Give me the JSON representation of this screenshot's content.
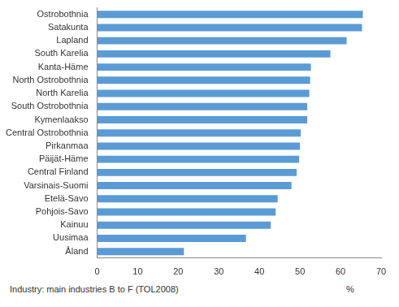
{
  "chart_data": {
    "type": "bar",
    "orientation": "horizontal",
    "categories": [
      "Ostrobothnia",
      "Satakunta",
      "Lapland",
      "South Karelia",
      "Kanta-Häme",
      "North Ostrobothnia",
      "North Karelia",
      "South Ostrobothnia",
      "Kymenlaakso",
      "Central Ostrobothnia",
      "Pirkanmaa",
      "Päijät-Häme",
      "Central Finland",
      "Varsinais-Suomi",
      "Etelä-Savo",
      "Pohjois-Savo",
      "Kainuu",
      "Uusimaa",
      "Åland"
    ],
    "values": [
      65.5,
      65.3,
      61.5,
      57.5,
      52.7,
      52.5,
      52.3,
      51.8,
      51.8,
      50.2,
      50.0,
      49.8,
      49.2,
      47.9,
      44.5,
      44.0,
      42.8,
      36.7,
      21.4
    ],
    "color": "#5b9bd5",
    "xlim": [
      0,
      70
    ],
    "xticks": [
      0,
      10,
      20,
      30,
      40,
      50,
      60,
      70
    ],
    "x_label": "%",
    "note": "Industry: main industries B to F (TOL2008)",
    "grid": false
  }
}
